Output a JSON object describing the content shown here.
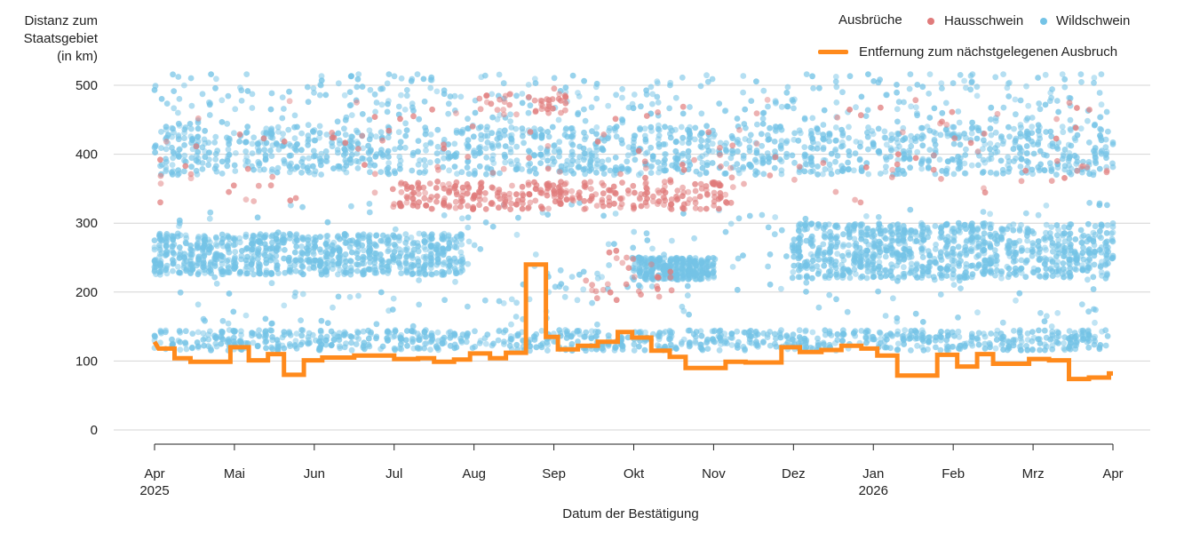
{
  "chart_data": {
    "type": "scatter+step-line",
    "ylabel_lines": [
      "Distanz zum",
      "Staatsgebiet",
      "(in km)"
    ],
    "xlabel": "Datum der Bestätigung",
    "legend": {
      "title": "Ausbrüche",
      "entries": [
        {
          "label": "Hausschwein",
          "color": "#e07b7b"
        },
        {
          "label": "Wildschwein",
          "color": "#74c3e6"
        }
      ],
      "line_label": "Entfernung zum nächstgelegenen Ausbruch",
      "line_color": "#ff8a1c"
    },
    "ylim": [
      0,
      500
    ],
    "yticks": [
      "0",
      "100",
      "200",
      "300",
      "400",
      "500"
    ],
    "xlim_months": [
      0,
      12
    ],
    "xticks": [
      {
        "label": "Apr",
        "sub": "2025",
        "t": 0
      },
      {
        "label": "Mai",
        "sub": "",
        "t": 1
      },
      {
        "label": "Jun",
        "sub": "",
        "t": 2
      },
      {
        "label": "Jul",
        "sub": "",
        "t": 3
      },
      {
        "label": "Aug",
        "sub": "",
        "t": 4
      },
      {
        "label": "Sep",
        "sub": "",
        "t": 5
      },
      {
        "label": "Okt",
        "sub": "",
        "t": 6
      },
      {
        "label": "Nov",
        "sub": "",
        "t": 7
      },
      {
        "label": "Dez",
        "sub": "",
        "t": 8
      },
      {
        "label": "Jan",
        "sub": "2026",
        "t": 9
      },
      {
        "label": "Feb",
        "sub": "",
        "t": 10
      },
      {
        "label": "Mrz",
        "sub": "",
        "t": 11
      },
      {
        "label": "Apr",
        "sub": "",
        "t": 12
      }
    ],
    "line_series": {
      "name": "Entfernung zum nächstgelegenen Ausbruch",
      "points": [
        [
          0.0,
          128
        ],
        [
          0.05,
          118
        ],
        [
          0.25,
          118
        ],
        [
          0.25,
          104
        ],
        [
          0.45,
          104
        ],
        [
          0.45,
          99
        ],
        [
          0.95,
          99
        ],
        [
          0.95,
          120
        ],
        [
          1.18,
          120
        ],
        [
          1.18,
          101
        ],
        [
          1.42,
          101
        ],
        [
          1.42,
          110
        ],
        [
          1.62,
          110
        ],
        [
          1.62,
          80
        ],
        [
          1.87,
          80
        ],
        [
          1.87,
          101
        ],
        [
          2.1,
          101
        ],
        [
          2.1,
          105
        ],
        [
          2.5,
          105
        ],
        [
          2.5,
          108
        ],
        [
          3.0,
          108
        ],
        [
          3.0,
          103
        ],
        [
          3.3,
          103
        ],
        [
          3.3,
          104
        ],
        [
          3.5,
          104
        ],
        [
          3.5,
          99
        ],
        [
          3.75,
          99
        ],
        [
          3.75,
          102
        ],
        [
          3.95,
          102
        ],
        [
          3.95,
          111
        ],
        [
          4.2,
          111
        ],
        [
          4.2,
          104
        ],
        [
          4.4,
          104
        ],
        [
          4.4,
          112
        ],
        [
          4.65,
          112
        ],
        [
          4.65,
          240
        ],
        [
          4.9,
          240
        ],
        [
          4.9,
          135
        ],
        [
          5.05,
          135
        ],
        [
          5.05,
          117
        ],
        [
          5.3,
          117
        ],
        [
          5.3,
          122
        ],
        [
          5.55,
          122
        ],
        [
          5.55,
          128
        ],
        [
          5.8,
          128
        ],
        [
          5.8,
          142
        ],
        [
          5.98,
          142
        ],
        [
          5.98,
          134
        ],
        [
          6.22,
          134
        ],
        [
          6.22,
          115
        ],
        [
          6.45,
          115
        ],
        [
          6.45,
          106
        ],
        [
          6.65,
          106
        ],
        [
          6.65,
          90
        ],
        [
          7.15,
          90
        ],
        [
          7.15,
          99
        ],
        [
          7.4,
          99
        ],
        [
          7.4,
          98
        ],
        [
          7.85,
          98
        ],
        [
          7.85,
          120
        ],
        [
          8.08,
          120
        ],
        [
          8.08,
          113
        ],
        [
          8.35,
          113
        ],
        [
          8.35,
          116
        ],
        [
          8.6,
          116
        ],
        [
          8.6,
          122
        ],
        [
          8.85,
          122
        ],
        [
          8.85,
          118
        ],
        [
          9.05,
          118
        ],
        [
          9.05,
          108
        ],
        [
          9.3,
          108
        ],
        [
          9.3,
          79
        ],
        [
          9.8,
          79
        ],
        [
          9.8,
          109
        ],
        [
          10.05,
          109
        ],
        [
          10.05,
          92
        ],
        [
          10.3,
          92
        ],
        [
          10.3,
          110
        ],
        [
          10.5,
          110
        ],
        [
          10.5,
          96
        ],
        [
          10.95,
          96
        ],
        [
          10.95,
          103
        ],
        [
          11.2,
          103
        ],
        [
          11.2,
          101
        ],
        [
          11.45,
          101
        ],
        [
          11.45,
          74
        ],
        [
          11.7,
          74
        ],
        [
          11.7,
          76
        ],
        [
          11.95,
          76
        ],
        [
          11.95,
          82
        ],
        [
          12.0,
          82
        ]
      ]
    },
    "scatter_series": [
      {
        "name": "Wildschwein",
        "color": "#74c3e6",
        "note": "dense clusters of confirmed wild boar outbreaks, approx. distance bands",
        "clusters": [
          {
            "t": [
              0.0,
              12.0
            ],
            "y": [
              115,
              145
            ],
            "n": 900
          },
          {
            "t": [
              0.0,
              3.9
            ],
            "y": [
              225,
              285
            ],
            "n": 800
          },
          {
            "t": [
              6.0,
              7.0
            ],
            "y": [
              218,
              250
            ],
            "n": 300
          },
          {
            "t": [
              8.0,
              12.0
            ],
            "y": [
              220,
              300
            ],
            "n": 900
          },
          {
            "t": [
              0.0,
              12.0
            ],
            "y": [
              370,
              440
            ],
            "n": 1300
          },
          {
            "t": [
              0.0,
              12.0
            ],
            "y": [
              440,
              520
            ],
            "n": 350
          },
          {
            "t": [
              0.0,
              12.0
            ],
            "y": [
              150,
              330
            ],
            "n": 250
          }
        ]
      },
      {
        "name": "Hausschwein",
        "color": "#e07b7b",
        "note": "domestic pig outbreaks, mostly Jul–Nov 2025",
        "clusters": [
          {
            "t": [
              3.0,
              7.2
            ],
            "y": [
              320,
              360
            ],
            "n": 320
          },
          {
            "t": [
              4.0,
              5.2
            ],
            "y": [
              455,
              500
            ],
            "n": 40
          },
          {
            "t": [
              0.0,
              12.0
            ],
            "y": [
              330,
              480
            ],
            "n": 150
          },
          {
            "t": [
              5.3,
              6.5
            ],
            "y": [
              185,
              260
            ],
            "n": 30
          }
        ]
      }
    ]
  }
}
